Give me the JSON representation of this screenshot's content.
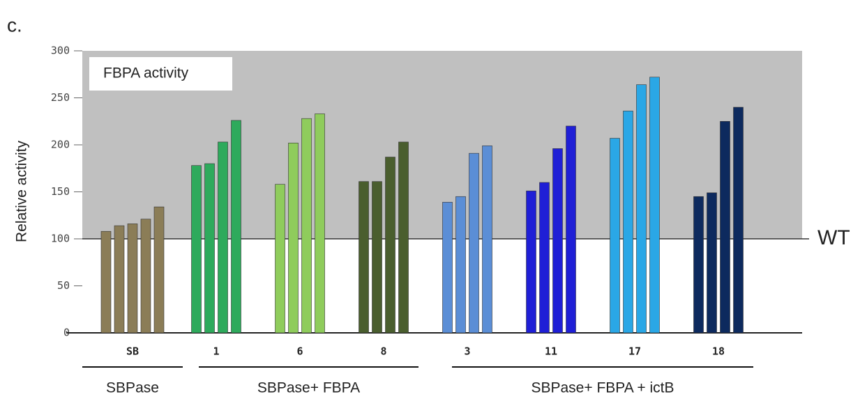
{
  "chart_data": {
    "type": "bar",
    "panel_label": "c.",
    "title": "FBPA activity",
    "y_label": "Relative activity",
    "ylim": [
      0,
      300
    ],
    "yticks": [
      0,
      50,
      100,
      150,
      200,
      250,
      300
    ],
    "reference_line": {
      "value": 100,
      "label": "WT"
    },
    "groups": [
      {
        "name": "SB",
        "color": "#8b7d57",
        "values": [
          108,
          114,
          116,
          121,
          134
        ]
      },
      {
        "name": "1",
        "color": "#2eaa5c",
        "values": [
          178,
          180,
          203,
          226
        ]
      },
      {
        "name": "6",
        "color": "#8fcc5c",
        "values": [
          158,
          202,
          228,
          233
        ]
      },
      {
        "name": "8",
        "color": "#4a5e2e",
        "values": [
          161,
          161,
          187,
          203
        ]
      },
      {
        "name": "3",
        "color": "#5b8ed6",
        "values": [
          139,
          145,
          191,
          199
        ]
      },
      {
        "name": "11",
        "color": "#1f1fd6",
        "values": [
          151,
          160,
          196,
          220
        ]
      },
      {
        "name": "17",
        "color": "#2aa7e6",
        "values": [
          207,
          236,
          264,
          272
        ]
      },
      {
        "name": "18",
        "color": "#0d2a5e",
        "values": [
          145,
          149,
          225,
          240
        ]
      }
    ],
    "group_labels": [
      "SBPase",
      "SBPase+ FBPA",
      "SBPase+ FBPA + ictB"
    ]
  }
}
